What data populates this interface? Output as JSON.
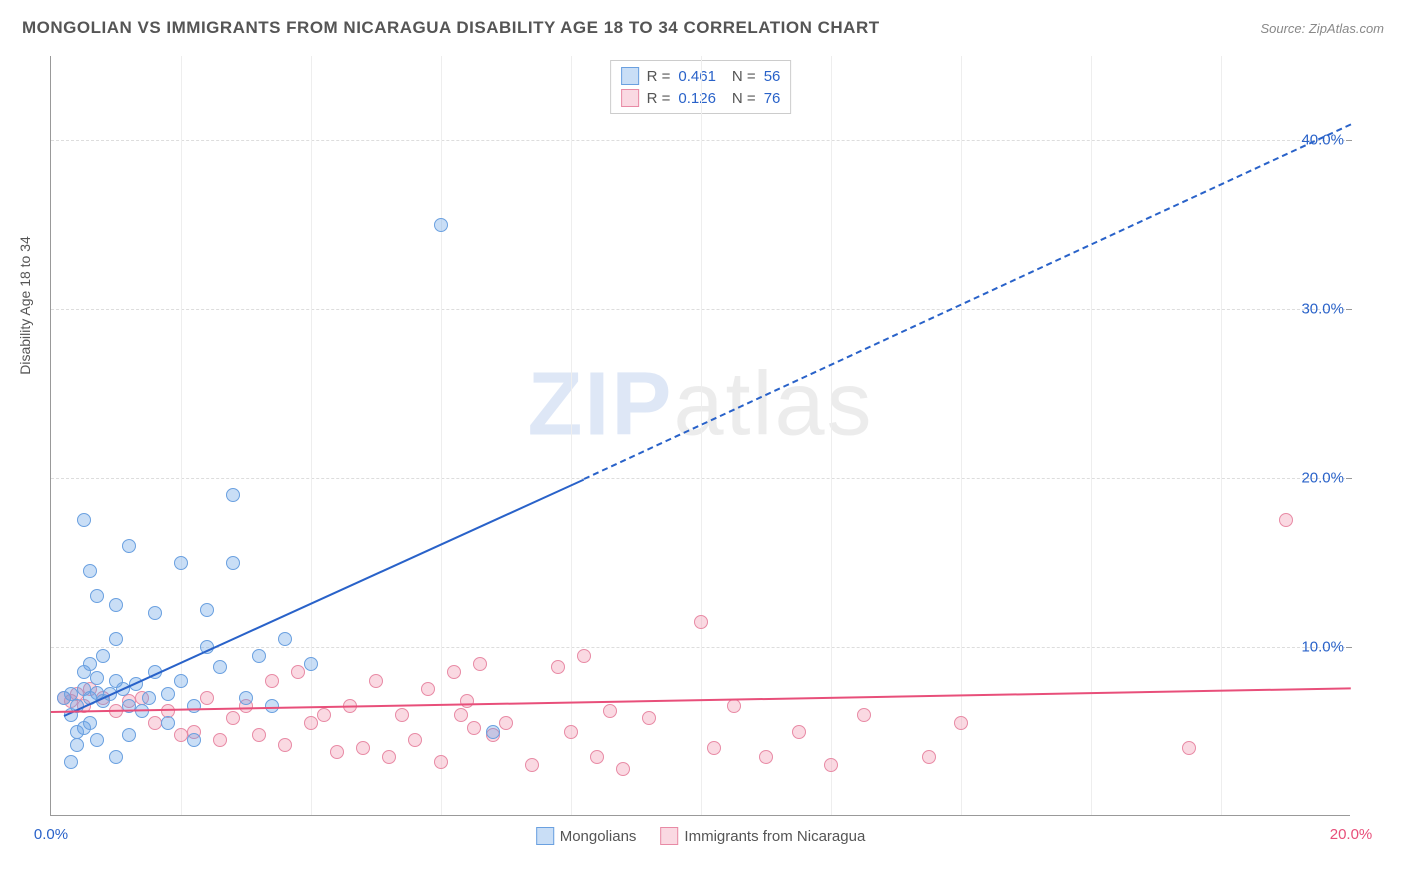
{
  "header": {
    "title": "MONGOLIAN VS IMMIGRANTS FROM NICARAGUA DISABILITY AGE 18 TO 34 CORRELATION CHART",
    "source": "Source: ZipAtlas.com"
  },
  "watermark": {
    "z": "ZIP",
    "rest": "atlas"
  },
  "axes": {
    "y_title": "Disability Age 18 to 34",
    "xlim": [
      0,
      20
    ],
    "ylim": [
      0,
      45
    ],
    "y_ticks": [
      10,
      20,
      30,
      40
    ],
    "y_tick_labels": [
      "10.0%",
      "20.0%",
      "30.0%",
      "40.0%"
    ],
    "x_ticks": [
      0,
      20
    ],
    "x_tick_labels": [
      "0.0%",
      "20.0%"
    ],
    "x_gridlines": [
      2,
      4,
      6,
      8,
      10,
      12,
      14,
      16,
      18
    ],
    "label_color_x0": "#2962c9",
    "label_color_x1": "#e84f7a",
    "label_color_y": "#2962c9"
  },
  "series": {
    "mongolians": {
      "label": "Mongolians",
      "fill": "rgba(100,160,230,0.35)",
      "stroke": "#6aa0e0",
      "r": 0.461,
      "n": 56,
      "trend": {
        "x0": 0.2,
        "y0": 6.0,
        "x1": 8.2,
        "y1": 20.0,
        "x2": 20,
        "y2": 41.0,
        "color": "#2962c9"
      },
      "points": [
        [
          0.2,
          7.0
        ],
        [
          0.3,
          7.2
        ],
        [
          0.4,
          6.5
        ],
        [
          0.5,
          7.5
        ],
        [
          0.6,
          7.0
        ],
        [
          0.7,
          7.3
        ],
        [
          0.8,
          6.8
        ],
        [
          0.9,
          7.2
        ],
        [
          1.0,
          8.0
        ],
        [
          0.3,
          6.0
        ],
        [
          0.5,
          8.5
        ],
        [
          0.6,
          9.0
        ],
        [
          0.7,
          8.2
        ],
        [
          0.5,
          5.2
        ],
        [
          0.4,
          5.0
        ],
        [
          0.6,
          5.5
        ],
        [
          1.1,
          7.5
        ],
        [
          1.2,
          6.5
        ],
        [
          1.3,
          7.8
        ],
        [
          1.4,
          6.2
        ],
        [
          1.5,
          7.0
        ],
        [
          1.6,
          8.5
        ],
        [
          0.8,
          9.5
        ],
        [
          1.0,
          10.5
        ],
        [
          0.4,
          4.2
        ],
        [
          0.7,
          4.5
        ],
        [
          1.2,
          4.8
        ],
        [
          0.3,
          3.2
        ],
        [
          1.0,
          3.5
        ],
        [
          1.8,
          7.2
        ],
        [
          2.0,
          8.0
        ],
        [
          2.2,
          6.5
        ],
        [
          2.4,
          10.0
        ],
        [
          2.6,
          8.8
        ],
        [
          1.6,
          12.0
        ],
        [
          1.0,
          12.5
        ],
        [
          0.7,
          13.0
        ],
        [
          0.6,
          14.5
        ],
        [
          0.5,
          17.5
        ],
        [
          1.2,
          16.0
        ],
        [
          2.0,
          15.0
        ],
        [
          2.8,
          15.0
        ],
        [
          2.4,
          12.2
        ],
        [
          2.8,
          19.0
        ],
        [
          3.2,
          9.5
        ],
        [
          3.6,
          10.5
        ],
        [
          4.0,
          9.0
        ],
        [
          1.8,
          5.5
        ],
        [
          2.2,
          4.5
        ],
        [
          3.0,
          7.0
        ],
        [
          3.4,
          6.5
        ],
        [
          6.8,
          5.0
        ],
        [
          6.0,
          35.0
        ]
      ]
    },
    "nicaragua": {
      "label": "Immigrants from Nicaragua",
      "fill": "rgba(240,130,160,0.30)",
      "stroke": "#e88aa5",
      "r": 0.126,
      "n": 76,
      "trend": {
        "x0": 0,
        "y0": 6.2,
        "x1": 20,
        "y1": 7.6,
        "color": "#e84f7a"
      },
      "points": [
        [
          0.2,
          7.0
        ],
        [
          0.3,
          6.8
        ],
        [
          0.4,
          7.2
        ],
        [
          0.5,
          6.5
        ],
        [
          0.6,
          7.5
        ],
        [
          0.8,
          7.0
        ],
        [
          1.0,
          6.2
        ],
        [
          1.2,
          6.8
        ],
        [
          1.4,
          7.0
        ],
        [
          1.6,
          5.5
        ],
        [
          1.8,
          6.2
        ],
        [
          2.0,
          4.8
        ],
        [
          2.2,
          5.0
        ],
        [
          2.4,
          7.0
        ],
        [
          2.6,
          4.5
        ],
        [
          2.8,
          5.8
        ],
        [
          3.0,
          6.5
        ],
        [
          3.2,
          4.8
        ],
        [
          3.4,
          8.0
        ],
        [
          3.6,
          4.2
        ],
        [
          3.8,
          8.5
        ],
        [
          4.0,
          5.5
        ],
        [
          4.2,
          6.0
        ],
        [
          4.4,
          3.8
        ],
        [
          4.6,
          6.5
        ],
        [
          4.8,
          4.0
        ],
        [
          5.0,
          8.0
        ],
        [
          5.2,
          3.5
        ],
        [
          5.4,
          6.0
        ],
        [
          5.6,
          4.5
        ],
        [
          5.8,
          7.5
        ],
        [
          6.0,
          3.2
        ],
        [
          6.2,
          8.5
        ],
        [
          6.3,
          6.0
        ],
        [
          6.5,
          5.2
        ],
        [
          6.4,
          6.8
        ],
        [
          6.6,
          9.0
        ],
        [
          6.8,
          4.8
        ],
        [
          7.0,
          5.5
        ],
        [
          7.4,
          3.0
        ],
        [
          7.8,
          8.8
        ],
        [
          8.0,
          5.0
        ],
        [
          8.2,
          9.5
        ],
        [
          8.4,
          3.5
        ],
        [
          8.6,
          6.2
        ],
        [
          8.8,
          2.8
        ],
        [
          9.2,
          5.8
        ],
        [
          10.0,
          11.5
        ],
        [
          10.2,
          4.0
        ],
        [
          10.5,
          6.5
        ],
        [
          11.0,
          3.5
        ],
        [
          11.5,
          5.0
        ],
        [
          12.0,
          3.0
        ],
        [
          12.5,
          6.0
        ],
        [
          13.5,
          3.5
        ],
        [
          14.0,
          5.5
        ],
        [
          17.5,
          4.0
        ],
        [
          19.0,
          17.5
        ]
      ]
    }
  },
  "legend_bottom": {
    "items": [
      {
        "swatch_fill": "rgba(100,160,230,0.35)",
        "swatch_stroke": "#6aa0e0",
        "label": "Mongolians"
      },
      {
        "swatch_fill": "rgba(240,130,160,0.30)",
        "swatch_stroke": "#e88aa5",
        "label": "Immigrants from Nicaragua"
      }
    ]
  },
  "legend_top": {
    "rows": [
      {
        "swatch_fill": "rgba(100,160,230,0.35)",
        "swatch_stroke": "#6aa0e0",
        "r": "0.461",
        "n": "56"
      },
      {
        "swatch_fill": "rgba(240,130,160,0.30)",
        "swatch_stroke": "#e88aa5",
        "r": "0.126",
        "n": "76"
      }
    ]
  },
  "style": {
    "point_diameter": 14
  }
}
